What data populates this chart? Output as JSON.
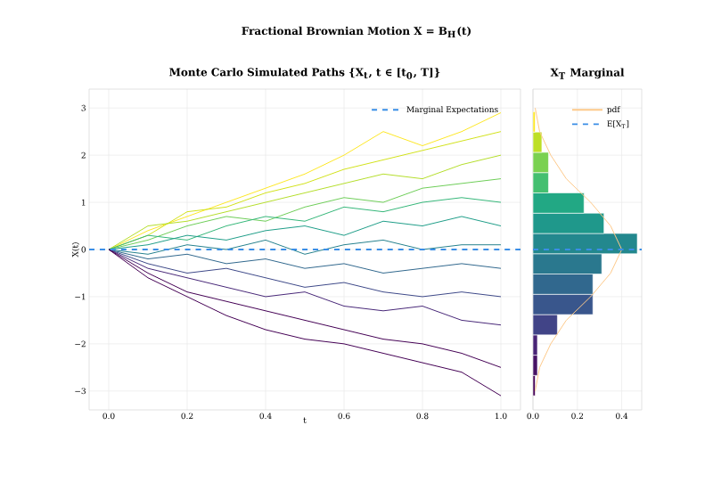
{
  "chart_data": [
    {
      "type": "line",
      "title": "Fractional Brownian Motion X = B$_{H}$(t)",
      "subtitle": "Monte Carlo Simulated Paths {X$_{t}$, t ∈ [t$_{0}$, T]}",
      "xlabel": "t",
      "ylabel": "X(t)",
      "x": [
        0,
        0.1,
        0.2,
        0.3,
        0.4,
        0.5,
        0.6,
        0.7,
        0.8,
        0.9,
        1.0
      ],
      "series": [
        {
          "color": "#fde725",
          "values": [
            0,
            0.4,
            0.7,
            1.0,
            1.3,
            1.6,
            2.0,
            2.5,
            2.2,
            2.5,
            2.9
          ]
        },
        {
          "color": "#d2e21b",
          "values": [
            0,
            0.3,
            0.8,
            0.9,
            1.2,
            1.4,
            1.7,
            1.9,
            2.1,
            2.3,
            2.5
          ]
        },
        {
          "color": "#b5de2b",
          "values": [
            0,
            0.5,
            0.6,
            0.8,
            1.0,
            1.2,
            1.4,
            1.6,
            1.5,
            1.8,
            2.0
          ]
        },
        {
          "color": "#6ece58",
          "values": [
            0,
            0.2,
            0.5,
            0.7,
            0.6,
            0.9,
            1.1,
            1.0,
            1.3,
            1.4,
            1.5
          ]
        },
        {
          "color": "#35b779",
          "values": [
            0,
            0.3,
            0.2,
            0.5,
            0.7,
            0.6,
            0.9,
            0.8,
            1.0,
            1.1,
            1.0
          ]
        },
        {
          "color": "#1f9e89",
          "values": [
            0,
            0.1,
            0.3,
            0.2,
            0.4,
            0.5,
            0.3,
            0.6,
            0.5,
            0.7,
            0.5
          ]
        },
        {
          "color": "#26828e",
          "values": [
            0,
            -0.1,
            0.1,
            0.0,
            0.2,
            -0.1,
            0.1,
            0.2,
            0.0,
            0.1,
            0.1
          ]
        },
        {
          "color": "#31688e",
          "values": [
            0,
            -0.2,
            -0.1,
            -0.3,
            -0.2,
            -0.4,
            -0.3,
            -0.5,
            -0.4,
            -0.3,
            -0.4
          ]
        },
        {
          "color": "#3e4989",
          "values": [
            0,
            -0.3,
            -0.5,
            -0.4,
            -0.6,
            -0.8,
            -0.7,
            -0.9,
            -1.0,
            -0.9,
            -1.0
          ]
        },
        {
          "color": "#482878",
          "values": [
            0,
            -0.4,
            -0.6,
            -0.8,
            -1.0,
            -0.9,
            -1.2,
            -1.3,
            -1.2,
            -1.5,
            -1.6
          ]
        },
        {
          "color": "#440154",
          "values": [
            0,
            -0.5,
            -0.9,
            -1.1,
            -1.3,
            -1.5,
            -1.7,
            -1.9,
            -2.0,
            -2.2,
            -2.5
          ]
        },
        {
          "color": "#440154",
          "values": [
            0,
            -0.6,
            -1.0,
            -1.4,
            -1.7,
            -1.9,
            -2.0,
            -2.2,
            -2.4,
            -2.6,
            -3.1
          ]
        }
      ],
      "xlim": [
        -0.05,
        1.05
      ],
      "ylim": [
        -3.4,
        3.4
      ],
      "xticks": [
        {
          "value": 0,
          "label": "0.0"
        },
        {
          "value": 0.2,
          "label": "0.2"
        },
        {
          "value": 0.4,
          "label": "0.4"
        },
        {
          "value": 0.6,
          "label": "0.6"
        },
        {
          "value": 0.8,
          "label": "0.8"
        },
        {
          "value": 1.0,
          "label": "1.0"
        }
      ],
      "yticks": [
        {
          "value": -3,
          "label": "−3"
        },
        {
          "value": -2,
          "label": "−2"
        },
        {
          "value": -1,
          "label": "−1"
        },
        0,
        1,
        2,
        3
      ],
      "grid": true,
      "legend": "top right",
      "ref_lines": [
        {
          "axis": "y",
          "value": 0,
          "label": "Marginal Expectations",
          "color": "#3a8ee6",
          "line_style": "dashed"
        }
      ]
    },
    {
      "type": "histogram",
      "orientation": "horizontal",
      "title": "X$_{T}$ Marginal",
      "bins": [
        -3.1,
        -2.67,
        -2.24,
        -1.81,
        -1.38,
        -0.95,
        -0.52,
        -0.09,
        0.34,
        0.77,
        1.2,
        1.63,
        2.06,
        2.49,
        2.92
      ],
      "values": [
        0.01,
        0.02,
        0.02,
        0.11,
        0.27,
        0.27,
        0.31,
        0.47,
        0.32,
        0.23,
        0.07,
        0.07,
        0.04,
        0.01
      ],
      "colors": [
        "#440154",
        "#471365",
        "#482475",
        "#414487",
        "#39568c",
        "#31688e",
        "#2a788e",
        "#23888e",
        "#1f988b",
        "#22a884",
        "#44bf70",
        "#7ad151",
        "#bddf26",
        "#fde725"
      ],
      "series": [
        {
          "name": "pdf",
          "type": "line",
          "color": "#fdc98a",
          "x": [
            -3,
            -2.5,
            -2,
            -1.5,
            -1,
            -0.5,
            0,
            0.5,
            1,
            1.5,
            2,
            2.5,
            3
          ],
          "values": [
            0.01,
            0.03,
            0.08,
            0.15,
            0.26,
            0.35,
            0.4,
            0.35,
            0.26,
            0.15,
            0.08,
            0.03,
            0.01
          ]
        }
      ],
      "xlim": [
        0,
        0.49
      ],
      "ylim": [
        -3.4,
        3.4
      ],
      "xticks": [
        {
          "value": 0,
          "label": "0.0"
        },
        {
          "value": 0.2,
          "label": "0.2"
        },
        {
          "value": 0.4,
          "label": "0.4"
        }
      ],
      "yticks": [
        -3,
        -2,
        -1,
        0,
        1,
        2,
        3
      ],
      "tick_labels": "x",
      "grid": true,
      "legend": "top right",
      "ref_lines": [
        {
          "axis": "y",
          "value": 0,
          "label": "E[X$_{T}$]",
          "color": "#3a8ee6",
          "line_style": "dashed"
        }
      ]
    }
  ]
}
